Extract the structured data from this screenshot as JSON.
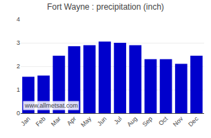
{
  "chart_data": {
    "type": "bar",
    "title": "Fort Wayne : precipitation (inch)",
    "categories": [
      "Jan",
      "Feb",
      "Mar",
      "Apr",
      "May",
      "Jun",
      "Jul",
      "Aug",
      "Sep",
      "Oct",
      "Nov",
      "Dec"
    ],
    "values": [
      1.55,
      1.6,
      2.45,
      2.85,
      2.9,
      3.05,
      3.0,
      2.9,
      2.3,
      2.3,
      2.1,
      2.45
    ],
    "color": "#0000CC",
    "ylim": [
      0,
      4
    ],
    "yticks": [
      0,
      1,
      2,
      3,
      4
    ],
    "grid": true,
    "annotations": [
      "www.allmetsat.com"
    ]
  }
}
